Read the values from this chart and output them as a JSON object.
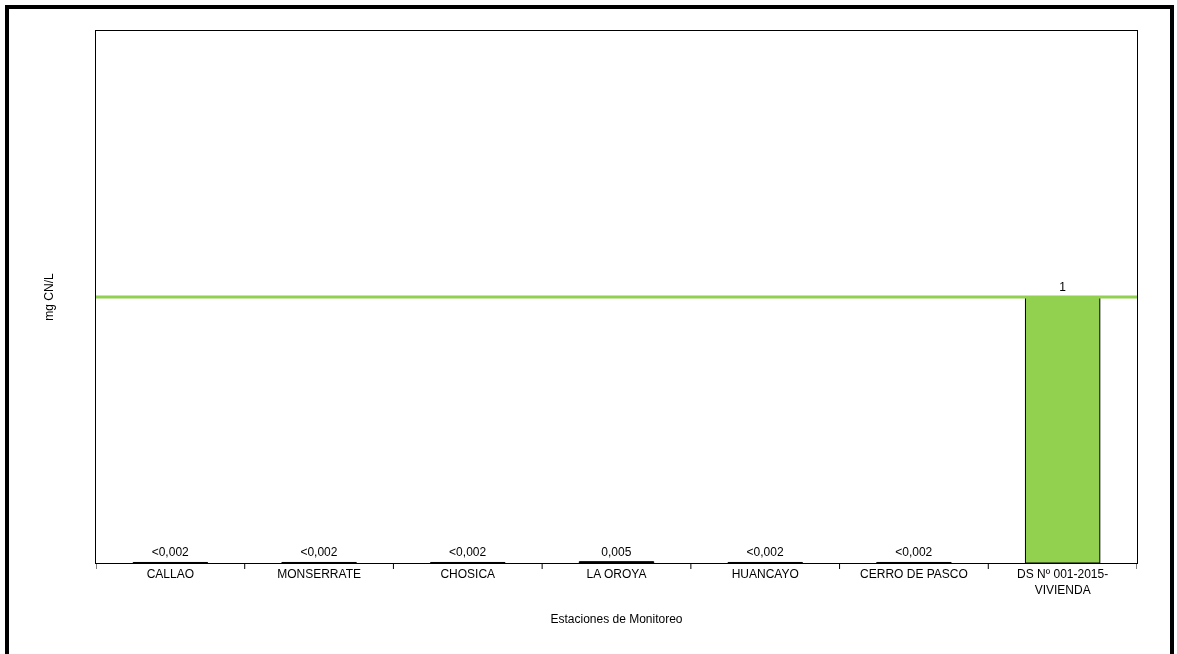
{
  "chart_data": {
    "type": "bar",
    "xlabel": "Estaciones de Monitoreo",
    "ylabel": "mg CN/L",
    "categories": [
      "CALLAO",
      "MONSERRATE",
      "CHOSICA",
      "LA OROYA",
      "HUANCAYO",
      "CERRO DE PASCO",
      "DS Nº 001-2015-VIVIENDA"
    ],
    "values": [
      0.002,
      0.002,
      0.002,
      0.005,
      0.002,
      0.002,
      1
    ],
    "colors": [
      "#000000",
      "#000000",
      "#000000",
      "#000000",
      "#000000",
      "#000000",
      "#92d050"
    ],
    "value_labels": [
      "<0,002",
      "<0,002",
      "<0,002",
      "0,005",
      "<0,002",
      "<0,002",
      "1"
    ],
    "ylim": [
      0,
      2
    ],
    "tick_labels": "x",
    "ref_lines": [
      {
        "axis": "y",
        "value": 1,
        "color": "#92d050"
      }
    ]
  }
}
